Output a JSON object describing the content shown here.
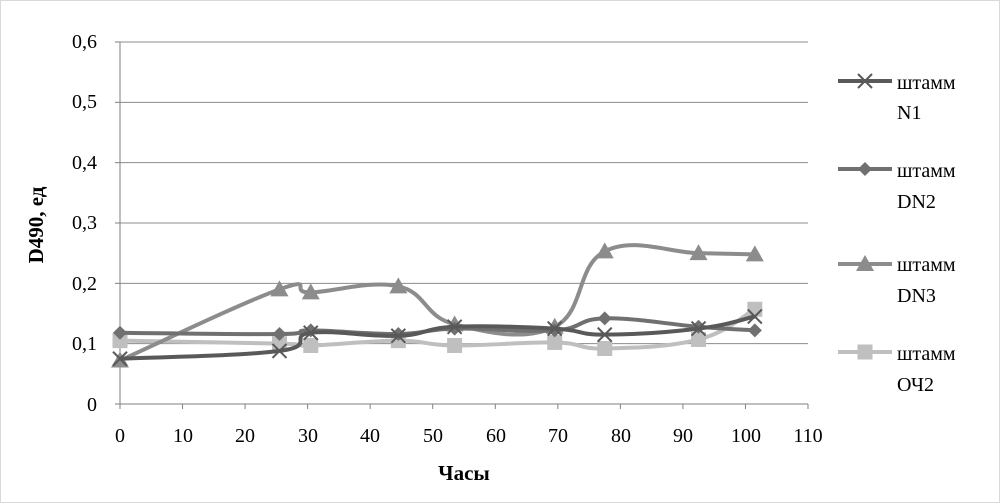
{
  "chart_data": {
    "type": "line",
    "title": "",
    "xlabel": "Часы",
    "ylabel": "D490, ед",
    "xlim": [
      0,
      110
    ],
    "ylim": [
      0,
      0.6
    ],
    "x_ticks": [
      "0",
      "10",
      "20",
      "30",
      "40",
      "50",
      "60",
      "70",
      "80",
      "90",
      "100",
      "110"
    ],
    "y_ticks": [
      "0",
      "0,1",
      "0,2",
      "0,3",
      "0,4",
      "0,5",
      "0,6"
    ],
    "grid": "horizontal",
    "legend_position": "right",
    "series": [
      {
        "name_lines": [
          "штамм",
          "N1"
        ],
        "color": "#595959",
        "marker": "cross",
        "x": [
          0,
          25.5,
          30.5,
          44.5,
          53.5,
          69.5,
          77.5,
          92.5,
          101.5
        ],
        "y": [
          0.075,
          0.088,
          0.118,
          0.113,
          0.128,
          0.125,
          0.115,
          0.125,
          0.145
        ]
      },
      {
        "name_lines": [
          "штамм",
          "DN2"
        ],
        "color": "#707070",
        "marker": "diamond",
        "x": [
          0,
          25.5,
          30.5,
          44.5,
          53.5,
          69.5,
          77.5,
          92.5,
          101.5
        ],
        "y": [
          0.118,
          0.116,
          0.122,
          0.116,
          0.125,
          0.122,
          0.142,
          0.128,
          0.122
        ]
      },
      {
        "name_lines": [
          "штамм",
          "DN3"
        ],
        "color": "#8c8c8c",
        "marker": "triangle",
        "x": [
          0,
          25.5,
          30.5,
          44.5,
          53.5,
          69.5,
          77.5,
          92.5,
          101.5
        ],
        "y": [
          0.072,
          0.19,
          0.185,
          0.195,
          0.132,
          0.128,
          0.253,
          0.25,
          0.248
        ]
      },
      {
        "name_lines": [
          "штамм",
          "ОЧ2"
        ],
        "color": "#bfbfbf",
        "marker": "square",
        "x": [
          0,
          25.5,
          30.5,
          44.5,
          53.5,
          69.5,
          77.5,
          92.5,
          101.5
        ],
        "y": [
          0.105,
          0.1,
          0.097,
          0.105,
          0.097,
          0.102,
          0.092,
          0.107,
          0.157
        ]
      }
    ]
  }
}
